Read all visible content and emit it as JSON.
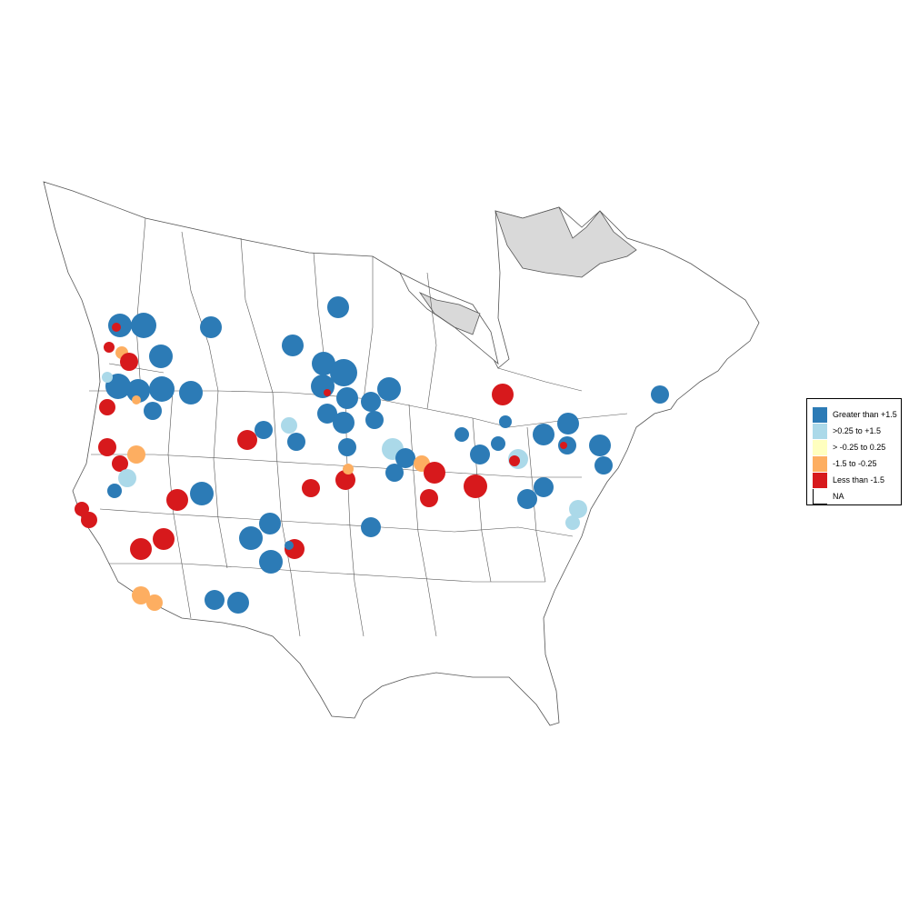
{
  "legend": {
    "items": [
      {
        "label": "Greater than +1.5",
        "color": "#2c7bb6"
      },
      {
        "label": ">0.25 to +1.5",
        "color": "#abd9e9"
      },
      {
        "label": "> -0.25 to 0.25",
        "color": "#ffffbf"
      },
      {
        "label": "-1.5 to -0.25",
        "color": "#fdae61"
      },
      {
        "label": "Less than -1.5",
        "color": "#d7191c"
      },
      {
        "label": "NA",
        "color": "#ffffff"
      }
    ]
  },
  "colors": {
    "boundary": "#555555",
    "na_region": "#d9d9d9"
  }
}
